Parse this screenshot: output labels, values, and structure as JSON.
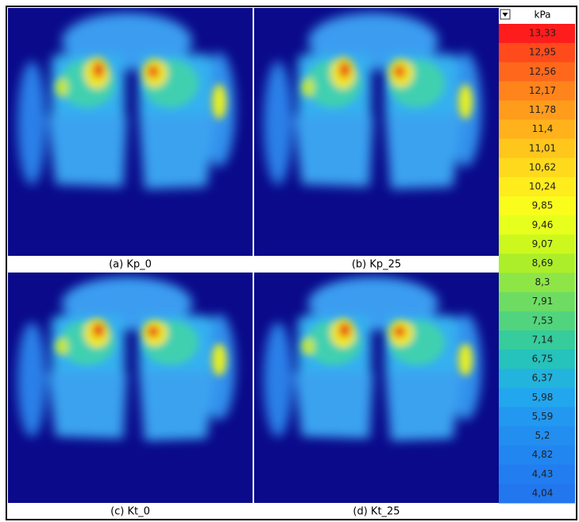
{
  "panels": [
    {
      "caption": "(a) Kp_0"
    },
    {
      "caption": "(b) Kp_25"
    },
    {
      "caption": "(c) Kt_0"
    },
    {
      "caption": "(d) Kt_25"
    }
  ],
  "legend": {
    "unit": "kPa",
    "levels": [
      {
        "label": "13,33",
        "color": "#ff1c1c"
      },
      {
        "label": "12,95",
        "color": "#ff4a1c"
      },
      {
        "label": "12,56",
        "color": "#ff681c"
      },
      {
        "label": "12,17",
        "color": "#ff841c"
      },
      {
        "label": "11,78",
        "color": "#ff9c1c"
      },
      {
        "label": "11,4",
        "color": "#ffb21c"
      },
      {
        "label": "11,01",
        "color": "#ffc61c"
      },
      {
        "label": "10,62",
        "color": "#ffda1c"
      },
      {
        "label": "10,24",
        "color": "#ffec1c"
      },
      {
        "label": "9,85",
        "color": "#fafc1c"
      },
      {
        "label": "9,46",
        "color": "#e6ff1c"
      },
      {
        "label": "9,07",
        "color": "#ccf81e"
      },
      {
        "label": "8,69",
        "color": "#acee2a"
      },
      {
        "label": "8,3",
        "color": "#8ee646"
      },
      {
        "label": "7,91",
        "color": "#6edc62"
      },
      {
        "label": "7,53",
        "color": "#52d47e"
      },
      {
        "label": "7,14",
        "color": "#36cc9c"
      },
      {
        "label": "6,75",
        "color": "#26c2bc"
      },
      {
        "label": "6,37",
        "color": "#22b4dc"
      },
      {
        "label": "5,98",
        "color": "#22a6ee"
      },
      {
        "label": "5,59",
        "color": "#2298f0"
      },
      {
        "label": "5,2",
        "color": "#228ef0"
      },
      {
        "label": "4,82",
        "color": "#2286f0"
      },
      {
        "label": "4,43",
        "color": "#227ef0"
      },
      {
        "label": "4,04",
        "color": "#2276ee"
      }
    ]
  }
}
